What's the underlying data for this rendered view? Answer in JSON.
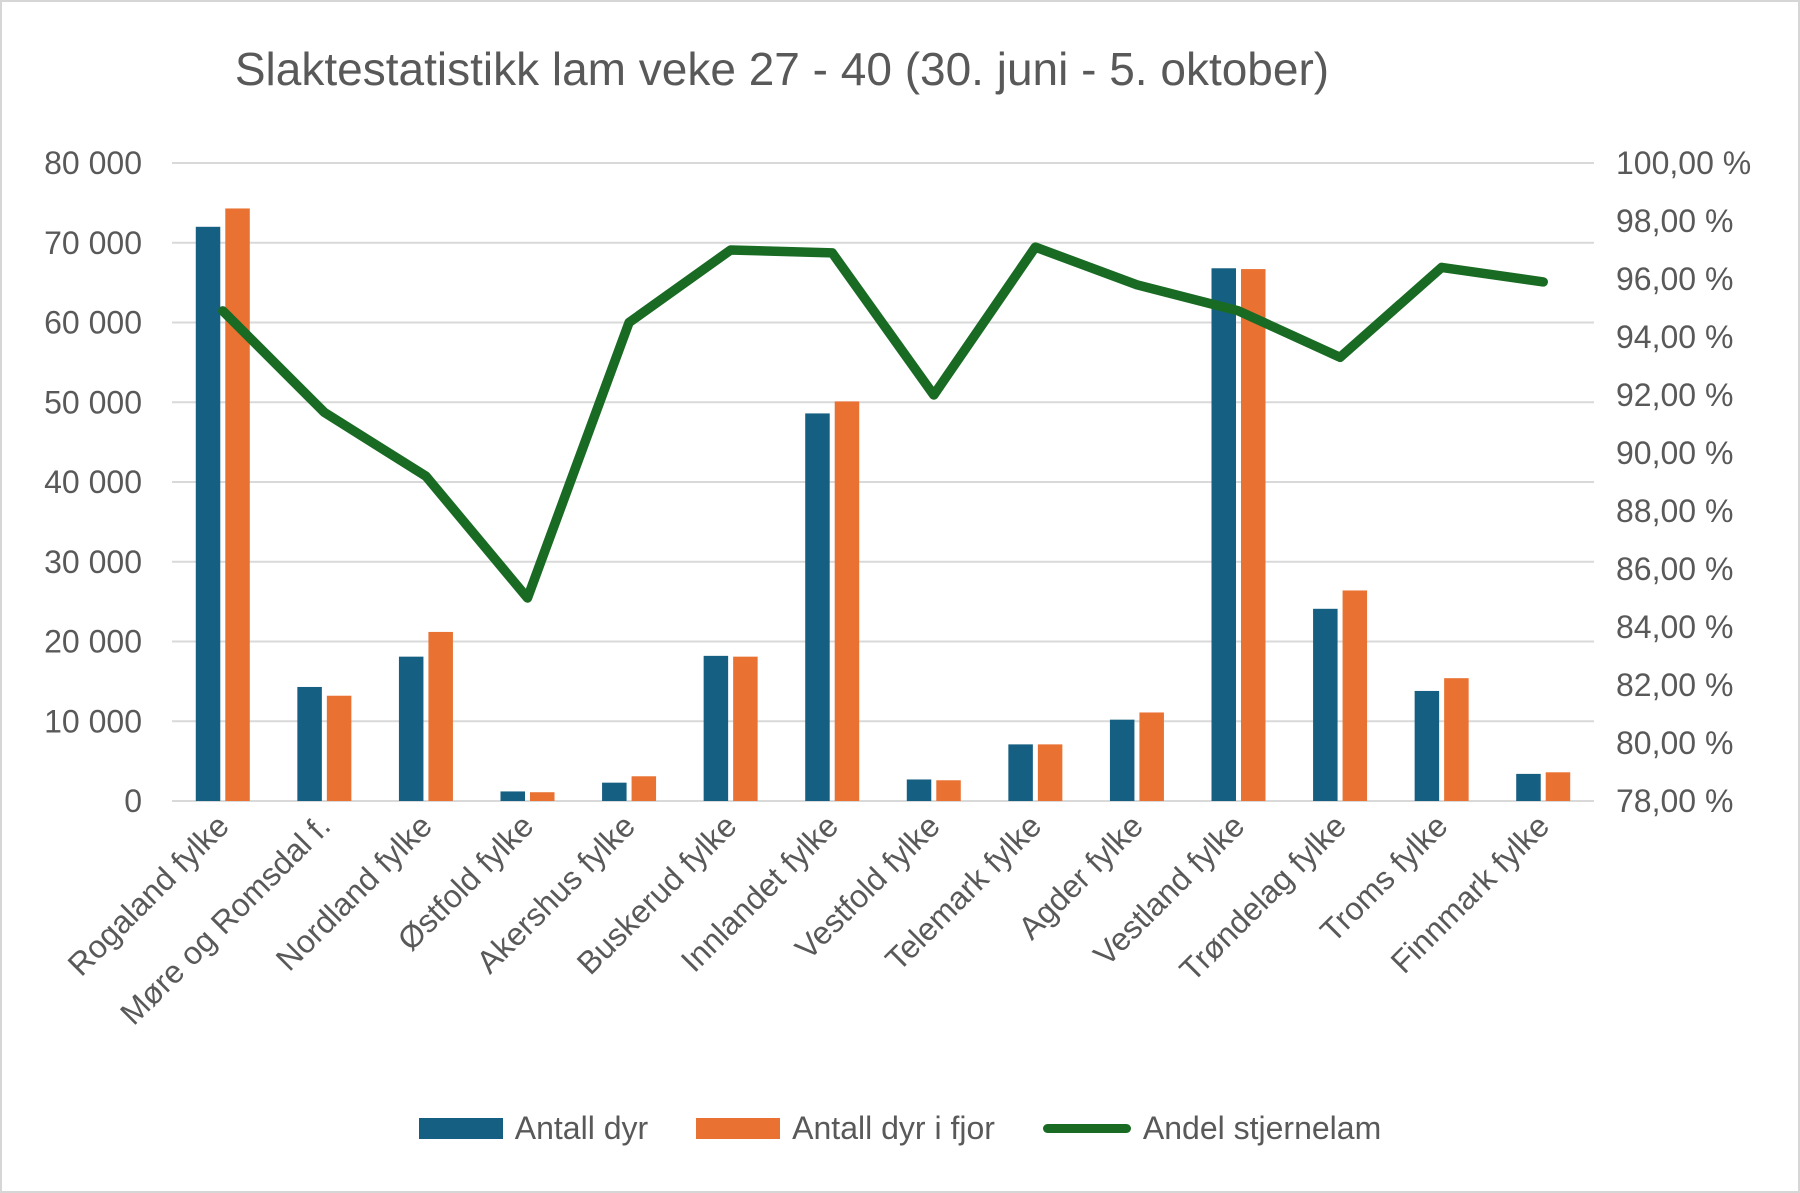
{
  "chart_data": {
    "type": "combo",
    "title": "Slaktestatistikk lam veke 27 - 40 (30. juni - 5. oktober)",
    "categories": [
      "Rogaland fylke",
      "Møre og Romsdal f.",
      "Nordland fylke",
      "Østfold fylke",
      "Akershus fylke",
      "Buskerud fylke",
      "Innlandet fylke",
      "Vestfold fylke",
      "Telemark fylke",
      "Agder fylke",
      "Vestland fylke",
      "Trøndelag fylke",
      "Troms fylke",
      "Finnmark fylke"
    ],
    "series": [
      {
        "name": "Antall dyr",
        "type": "bar",
        "axis": "left",
        "color": "#156082",
        "values": [
          72000,
          14300,
          18100,
          1200,
          2300,
          18200,
          48600,
          2700,
          7100,
          10200,
          66800,
          24100,
          13800,
          3400
        ]
      },
      {
        "name": "Antall dyr i fjor",
        "type": "bar",
        "axis": "left",
        "color": "#E97132",
        "values": [
          74300,
          13200,
          21200,
          1100,
          3100,
          18100,
          50100,
          2600,
          7100,
          11100,
          66700,
          26400,
          15400,
          3600
        ]
      },
      {
        "name": "Andel stjernelam",
        "type": "line",
        "axis": "right",
        "color": "#196B24",
        "values_percent": [
          94.9,
          91.4,
          89.2,
          85.0,
          94.5,
          97.0,
          96.9,
          92.0,
          97.1,
          95.8,
          94.9,
          93.3,
          96.4,
          95.9
        ]
      }
    ],
    "left_axis": {
      "min": 0,
      "max": 80000,
      "step": 10000,
      "tick_values": [
        0,
        10000,
        20000,
        30000,
        40000,
        50000,
        60000,
        70000,
        80000
      ],
      "tick_labels": [
        "0",
        "10 000",
        "20 000",
        "30 000",
        "40 000",
        "50 000",
        "60 000",
        "70 000",
        "80 000"
      ]
    },
    "right_axis": {
      "min": 78,
      "max": 100,
      "step": 2,
      "tick_values": [
        78,
        80,
        82,
        84,
        86,
        88,
        90,
        92,
        94,
        96,
        98,
        100
      ],
      "tick_labels": [
        "78,00 %",
        "80,00 %",
        "82,00 %",
        "84,00 %",
        "86,00 %",
        "88,00 %",
        "90,00 %",
        "92,00 %",
        "94,00 %",
        "96,00 %",
        "98,00 %",
        "100,00 %"
      ]
    },
    "grid": "horizontal",
    "gridline_color": "#D9D9D9",
    "text_color": "#595959",
    "legend_position": "bottom"
  }
}
